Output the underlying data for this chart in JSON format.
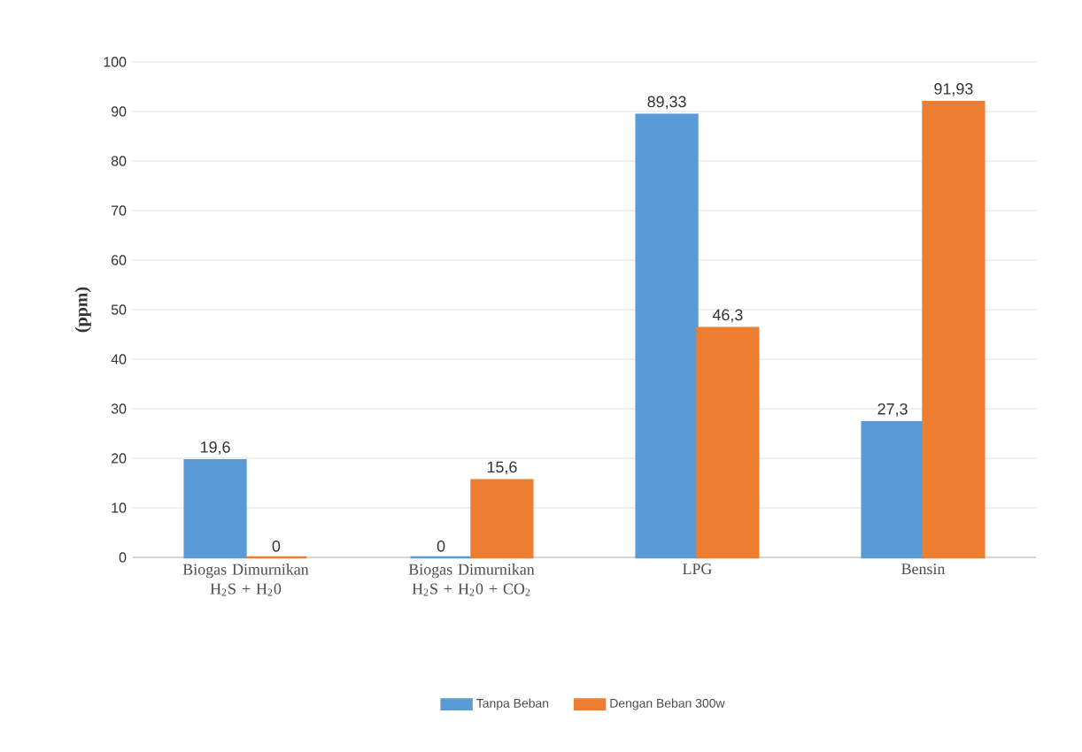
{
  "chart_data": {
    "type": "bar",
    "ylabel": "(ppm)",
    "categories": [
      "Biogas Dimurnikan H$_{2}$S + H$_{2}$0",
      "Biogas Dimurnikan H$_{2}$S + H$_{2}$0 + CO$_{2}$",
      "LPG",
      "Bensin"
    ],
    "series": [
      {
        "name": "Tanpa Beban",
        "color": "#5b9bd5",
        "values": [
          19.6,
          0,
          89.33,
          27.3
        ],
        "value_labels": [
          "19,6",
          "0",
          "89,33",
          "27,3"
        ]
      },
      {
        "name": "Dengan Beban 300w",
        "color": "#ed7d31",
        "values": [
          0,
          15.6,
          46.3,
          91.93
        ],
        "value_labels": [
          "0",
          "15,6",
          "46,3",
          "91,93"
        ]
      }
    ],
    "ylim": [
      0,
      100
    ],
    "yticks": [
      0,
      10,
      20,
      30,
      40,
      50,
      60,
      70,
      80,
      90,
      100
    ],
    "grid": "y",
    "legend": "bottom"
  }
}
